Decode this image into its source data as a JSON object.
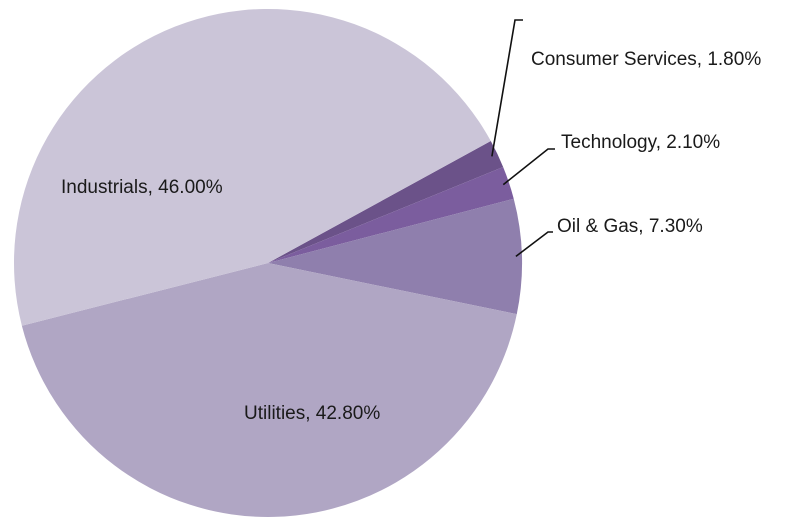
{
  "chart_data": {
    "type": "pie",
    "slices": [
      {
        "name": "Consumer Services",
        "value": 1.8,
        "label": "Consumer Services, 1.80%",
        "color": "#6b5289"
      },
      {
        "name": "Technology",
        "value": 2.1,
        "label": "Technology, 2.10%",
        "color": "#7b5d9e"
      },
      {
        "name": "Oil & Gas",
        "value": 7.3,
        "label": "Oil & Gas, 7.30%",
        "color": "#8f7fad"
      },
      {
        "name": "Utilities",
        "value": 42.8,
        "label": "Utilities, 42.80%",
        "color": "#b0a6c4"
      },
      {
        "name": "Industrials",
        "value": 46.0,
        "label": "Industrials, 46.00%",
        "color": "#cbc5d8"
      }
    ],
    "start_angle_deg": 28.7,
    "direction": "clockwise",
    "legend": "none"
  }
}
